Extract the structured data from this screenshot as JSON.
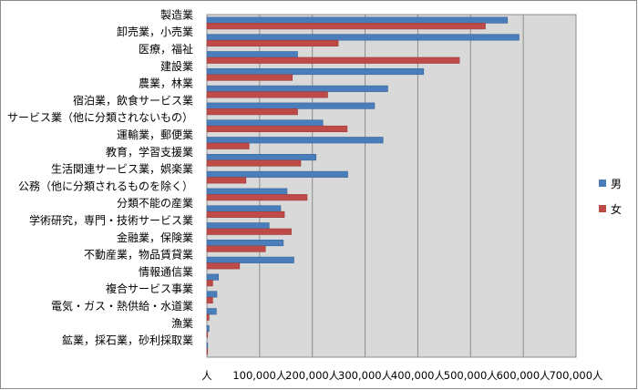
{
  "chart_data": {
    "type": "bar",
    "orientation": "horizontal",
    "title": "",
    "xlabel": "",
    "ylabel": "",
    "categories": [
      "製造業",
      "卸売業，小売業",
      "医療，福祉",
      "建設業",
      "農業，林業",
      "宿泊業，飲食サービス業",
      "サービス業（他に分類されないもの）",
      "運輸業，郵便業",
      "教育，学習支援業",
      "生活関連サービス業，娯楽業",
      "公務（他に分類されるものを除く）",
      "分類不能の産業",
      "学術研究，専門・技術サービス業",
      "金融業，保険業",
      "不動産業，物品賃貸業",
      "情報通信業",
      "複合サービス事業",
      "電気・ガス・熱供給・水道業",
      "漁業",
      "鉱業，採石業，砂利採取業"
    ],
    "series": [
      {
        "name": "男",
        "color": "#4a7ebb",
        "values": [
          570000,
          592000,
          172000,
          411000,
          343000,
          318000,
          220000,
          334000,
          207000,
          267000,
          152000,
          140000,
          118000,
          145000,
          165000,
          22000,
          19000,
          18000,
          4000,
          1500
        ]
      },
      {
        "name": "女",
        "color": "#be4b48",
        "values": [
          528000,
          249000,
          479000,
          162000,
          229000,
          172000,
          266000,
          80000,
          178000,
          74000,
          190000,
          147000,
          160000,
          111000,
          62000,
          11000,
          11000,
          4000,
          1000,
          500
        ]
      }
    ],
    "xlim": [
      0,
      700000
    ],
    "tick_labels": [
      "人",
      "100,000人",
      "200,000人",
      "300,000人",
      "400,000人",
      "500,000人",
      "600,000人",
      "700,000人"
    ],
    "grid": true,
    "legend_position": "right"
  }
}
